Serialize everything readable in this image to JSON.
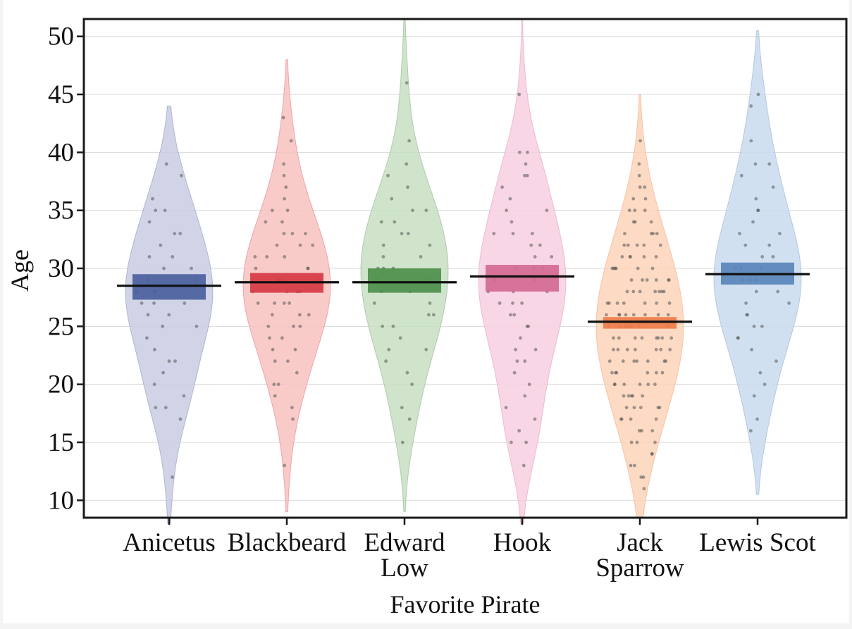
{
  "chart_data": {
    "type": "violin",
    "xlabel": "Favorite Pirate",
    "ylabel": "Age",
    "ylim": [
      8.5,
      51.5
    ],
    "yticks": [
      10,
      15,
      20,
      25,
      30,
      35,
      40,
      45,
      50
    ],
    "grid": true,
    "legend": "none",
    "categories": [
      {
        "name": "Anicetus",
        "label_lines": [
          "Anicetus"
        ],
        "color": "#4a5f9e",
        "fill": "#c9cde3",
        "range": [
          8,
          44
        ],
        "mean": 28.5,
        "ci": [
          27.3,
          29.5
        ],
        "points": [
          12,
          17,
          18,
          18,
          19,
          20,
          21,
          22,
          22,
          23,
          24,
          25,
          25,
          26,
          26,
          27,
          27,
          27,
          28,
          28,
          28,
          29,
          29,
          30,
          30,
          31,
          31,
          32,
          33,
          33,
          34,
          35,
          35,
          36,
          38,
          39
        ]
      },
      {
        "name": "Blackbeard",
        "label_lines": [
          "Blackbeard"
        ],
        "color": "#d63a43",
        "fill": "#f7c2bf",
        "range": [
          9,
          48
        ],
        "mean": 28.8,
        "ci": [
          27.9,
          29.6
        ],
        "points": [
          13,
          17,
          18,
          19,
          20,
          20,
          21,
          22,
          22,
          23,
          23,
          24,
          24,
          25,
          25,
          25,
          26,
          26,
          26,
          27,
          27,
          27,
          27,
          28,
          28,
          28,
          28,
          29,
          29,
          29,
          29,
          30,
          30,
          30,
          31,
          31,
          31,
          32,
          32,
          32,
          33,
          33,
          33,
          34,
          34,
          35,
          35,
          36,
          37,
          38,
          39,
          41,
          43
        ]
      },
      {
        "name": "Edward Low",
        "label_lines": [
          "Edward",
          "Low"
        ],
        "color": "#4e8f4c",
        "fill": "#c7dfc2",
        "range": [
          9,
          51.5
        ],
        "mean": 28.8,
        "ci": [
          27.9,
          30.0
        ],
        "points": [
          15,
          17,
          18,
          20,
          21,
          22,
          23,
          23,
          24,
          25,
          25,
          26,
          26,
          27,
          27,
          28,
          28,
          29,
          29,
          30,
          30,
          30,
          31,
          31,
          32,
          32,
          33,
          33,
          34,
          34,
          35,
          35,
          36,
          37,
          38,
          39,
          41,
          46
        ]
      },
      {
        "name": "Hook",
        "label_lines": [
          "Hook"
        ],
        "color": "#d46a92",
        "fill": "#f7cfe0",
        "range": [
          8,
          51.5
        ],
        "mean": 29.3,
        "ci": [
          28.0,
          30.3
        ],
        "points": [
          13,
          15,
          15,
          16,
          17,
          18,
          19,
          20,
          21,
          22,
          22,
          23,
          23,
          24,
          25,
          25,
          26,
          26,
          27,
          27,
          27,
          28,
          28,
          28,
          29,
          29,
          30,
          30,
          30,
          31,
          31,
          32,
          32,
          33,
          33,
          33,
          34,
          35,
          35,
          36,
          37,
          38,
          38,
          39,
          40,
          40,
          45
        ]
      },
      {
        "name": "Jack Sparrow",
        "label_lines": [
          "Jack",
          "Sparrow"
        ],
        "color": "#ef7d4a",
        "fill": "#fbd3b9",
        "range": [
          8.5,
          45
        ],
        "mean": 25.4,
        "ci": [
          24.8,
          25.8
        ],
        "points": [
          11,
          12,
          12,
          13,
          13,
          14,
          14,
          15,
          15,
          15,
          16,
          16,
          16,
          17,
          17,
          17,
          17,
          18,
          18,
          18,
          18,
          18,
          19,
          19,
          19,
          19,
          19,
          20,
          20,
          20,
          20,
          20,
          20,
          21,
          21,
          21,
          21,
          21,
          21,
          22,
          22,
          22,
          22,
          22,
          22,
          22,
          23,
          23,
          23,
          23,
          23,
          23,
          23,
          24,
          24,
          24,
          24,
          24,
          24,
          24,
          24,
          25,
          25,
          25,
          25,
          25,
          25,
          25,
          25,
          26,
          26,
          26,
          26,
          26,
          26,
          26,
          26,
          27,
          27,
          27,
          27,
          27,
          27,
          27,
          28,
          28,
          28,
          28,
          28,
          28,
          28,
          29,
          29,
          29,
          29,
          29,
          29,
          30,
          30,
          30,
          30,
          30,
          30,
          31,
          31,
          31,
          31,
          31,
          32,
          32,
          32,
          32,
          32,
          33,
          33,
          33,
          33,
          34,
          34,
          34,
          35,
          35,
          35,
          36,
          36,
          37,
          37,
          38,
          39,
          41
        ]
      },
      {
        "name": "Lewis Scot",
        "label_lines": [
          "Lewis Scot"
        ],
        "color": "#5a86bb",
        "fill": "#c9dbef",
        "range": [
          10.5,
          50.5
        ],
        "mean": 29.5,
        "ci": [
          28.6,
          30.5
        ],
        "points": [
          16,
          17,
          19,
          20,
          21,
          22,
          23,
          24,
          24,
          25,
          25,
          26,
          26,
          27,
          27,
          28,
          28,
          29,
          29,
          29,
          30,
          30,
          30,
          31,
          31,
          32,
          32,
          33,
          33,
          34,
          35,
          35,
          36,
          37,
          38,
          39,
          39,
          41,
          44,
          45
        ]
      }
    ]
  }
}
